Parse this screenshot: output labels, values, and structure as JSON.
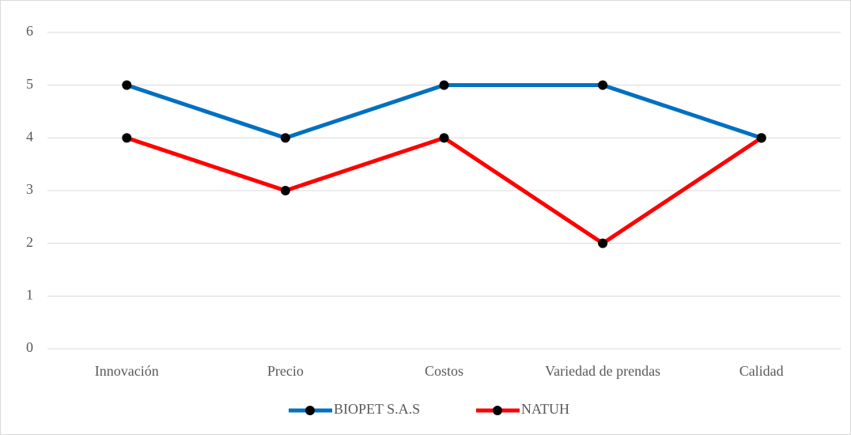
{
  "chart_data": {
    "type": "line",
    "categories": [
      "Innovación",
      "Precio",
      "Costos",
      "Variedad de prendas",
      "Calidad"
    ],
    "series": [
      {
        "name": "BIOPET S.A.S",
        "color": "#0070c0",
        "values": [
          5,
          4,
          5,
          5,
          4
        ]
      },
      {
        "name": "NATUH",
        "color": "#ff0000",
        "values": [
          4,
          3,
          4,
          2,
          4
        ]
      }
    ],
    "ylim": [
      0,
      6
    ],
    "yticks": [
      0,
      1,
      2,
      3,
      4,
      5,
      6
    ],
    "grid": true,
    "legend": "bottom"
  }
}
